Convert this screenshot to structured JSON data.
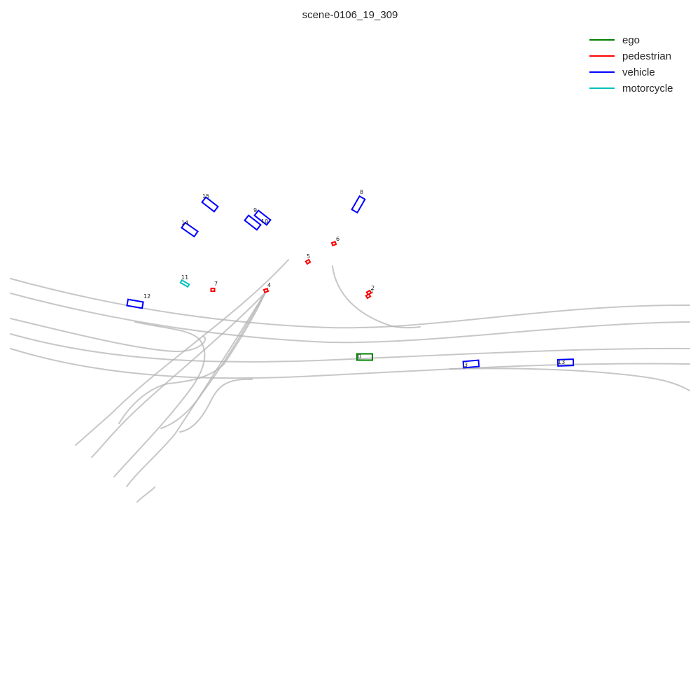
{
  "title": "scene-0106_19_309",
  "legend": [
    {
      "label": "ego",
      "color": "#008000"
    },
    {
      "label": "pedestrian",
      "color": "#ff0000"
    },
    {
      "label": "vehicle",
      "color": "#0000ff"
    },
    {
      "label": "motorcycle",
      "color": "#00bfbf"
    }
  ],
  "agents": [
    {
      "id": "0",
      "type": "ego"
    },
    {
      "id": "1",
      "type": "pedestrian"
    },
    {
      "id": "2",
      "type": "pedestrian"
    },
    {
      "id": "3",
      "type": "vehicle"
    },
    {
      "id": "4",
      "type": "pedestrian"
    },
    {
      "id": "5",
      "type": "pedestrian"
    },
    {
      "id": "6",
      "type": "pedestrian"
    },
    {
      "id": "7",
      "type": "pedestrian"
    },
    {
      "id": "8",
      "type": "vehicle"
    },
    {
      "id": "9",
      "type": "vehicle"
    },
    {
      "id": "10",
      "type": "vehicle"
    },
    {
      "id": "11",
      "type": "motorcycle"
    },
    {
      "id": "12",
      "type": "vehicle"
    },
    {
      "id": "13",
      "type": "vehicle"
    },
    {
      "id": "14",
      "type": "vehicle"
    },
    {
      "id": "15",
      "type": "vehicle"
    }
  ]
}
